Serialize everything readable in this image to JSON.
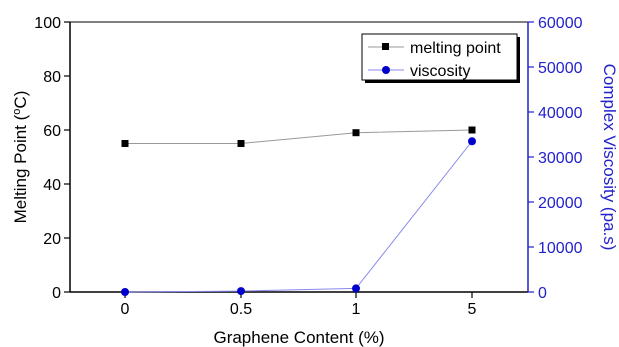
{
  "chart_data": {
    "type": "line",
    "categories": [
      "0",
      "0.5",
      "1",
      "5"
    ],
    "xlabel": "Graphene Content (%)",
    "left_axis": {
      "label": "Melting Point (°C)",
      "label_parts": [
        "Melting Point (",
        "o",
        "C)"
      ],
      "ylim": [
        0,
        100
      ],
      "ticks": [
        "0",
        "20",
        "40",
        "60",
        "80",
        "100"
      ]
    },
    "right_axis": {
      "label": "Complex Viscosity (pa.s)",
      "ylim": [
        0,
        60000
      ],
      "ticks": [
        "0",
        "10000",
        "20000",
        "30000",
        "40000",
        "50000",
        "60000"
      ],
      "color": "#2222cc"
    },
    "series": [
      {
        "name": "melting point",
        "axis": "left",
        "values": [
          55,
          55,
          59,
          60
        ],
        "color": "#000000",
        "line_color": "#999999",
        "marker": "square"
      },
      {
        "name": "viscosity",
        "axis": "right",
        "values": [
          0,
          200,
          800,
          33500
        ],
        "color": "#0000cc",
        "line_color": "#8888ee",
        "marker": "circle"
      }
    ],
    "legend": {
      "position": "top-right"
    },
    "grid": false
  }
}
